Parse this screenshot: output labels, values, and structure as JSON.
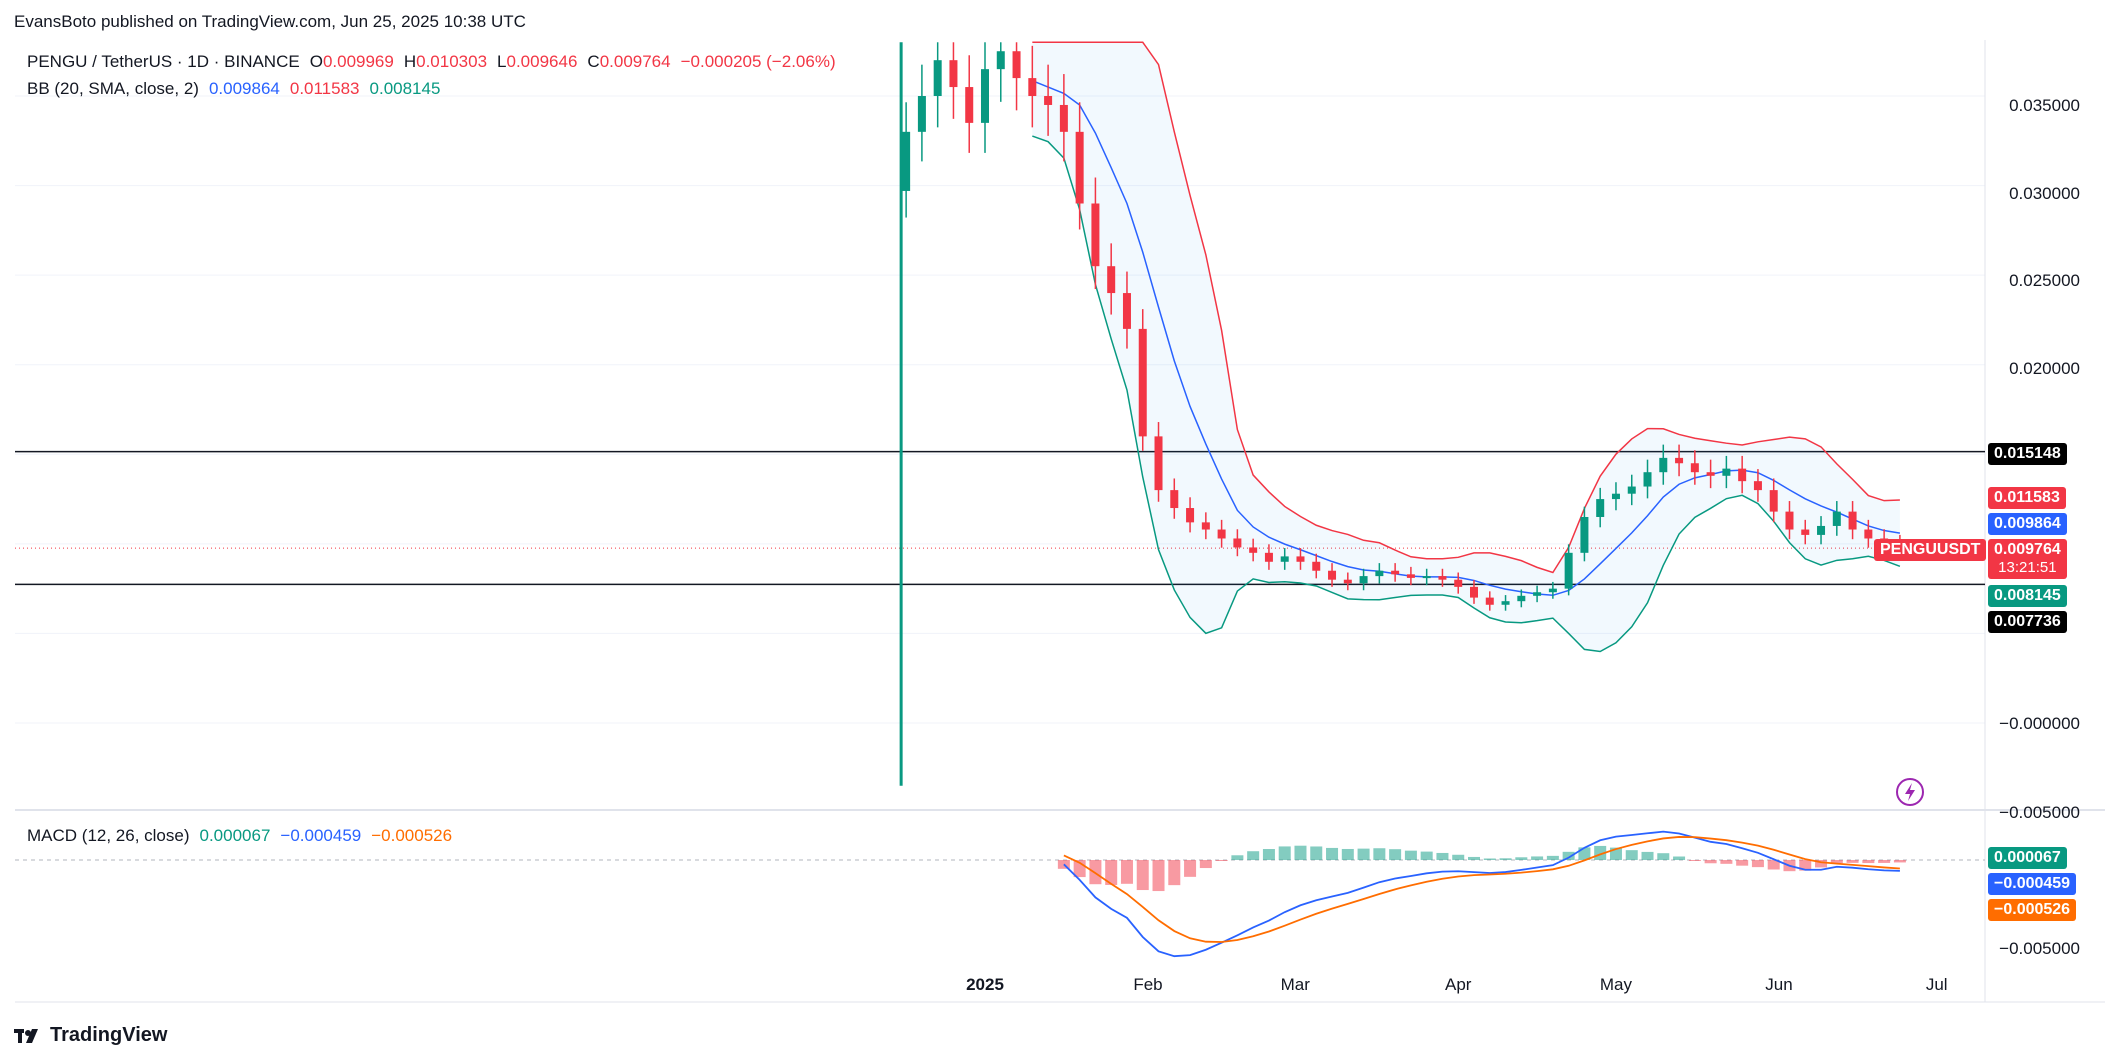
{
  "publisher": "EvansBoto published on TradingView.com, Jun 25, 2025 10:38 UTC",
  "brand": "TradingView",
  "legend": {
    "symbol": "PENGU / TetherUS · 1D · BINANCE",
    "ohlc": {
      "o_label": "O",
      "o": "0.009969",
      "h_label": "H",
      "h": "0.010303",
      "l_label": "L",
      "l": "0.009646",
      "c_label": "C",
      "c": "0.009764",
      "chg": "−0.000205 (−2.06%)"
    },
    "bb": {
      "name": "BB (20, SMA, close, 2)",
      "basis": "0.009864",
      "upper": "0.011583",
      "lower": "0.008145"
    },
    "macd": {
      "name": "MACD (12, 26, close)",
      "hist": "0.000067",
      "macd": "−0.000459",
      "signal": "−0.000526"
    }
  },
  "price_labels": {
    "level_high": "0.015148",
    "upper": "0.011583",
    "basis": "0.009864",
    "symbol_tag": "PENGUUSDT",
    "last": "0.009764",
    "countdown": "13:21:51",
    "lower": "0.008145",
    "level_low": "0.007736",
    "macd_hist": "0.000067",
    "macd_line": "−0.000459",
    "macd_signal": "−0.000526"
  },
  "colors": {
    "up": "#089981",
    "down": "#f23645",
    "basis": "#2962ff",
    "upper": "#f23645",
    "lower": "#089981",
    "signal": "#ff6d00",
    "band_fill": "#2196f3"
  },
  "chart_data": [
    {
      "type": "candlestick",
      "title": "PENGU / TetherUS · 1D · BINANCE",
      "y_axis_ticks": [
        "0.035000",
        "0.030000",
        "0.025000",
        "0.020000",
        "−0.000000",
        "−0.005000"
      ],
      "x_axis_ticks": [
        "2025",
        "Feb",
        "Mar",
        "Apr",
        "May",
        "Jun",
        "Jul"
      ],
      "horizontal_levels": [
        0.015148,
        0.007736
      ],
      "close_series": {
        "dates": [
          "2024-12-17",
          "2024-12-20",
          "2024-12-23",
          "2024-12-26",
          "2024-12-29",
          "2025-01-01",
          "2025-01-04",
          "2025-01-07",
          "2025-01-10",
          "2025-01-13",
          "2025-01-16",
          "2025-01-19",
          "2025-01-22",
          "2025-01-25",
          "2025-01-28",
          "2025-01-31",
          "2025-02-03",
          "2025-02-06",
          "2025-02-09",
          "2025-02-12",
          "2025-02-15",
          "2025-02-18",
          "2025-02-21",
          "2025-02-24",
          "2025-02-27",
          "2025-03-02",
          "2025-03-05",
          "2025-03-08",
          "2025-03-11",
          "2025-03-14",
          "2025-03-17",
          "2025-03-20",
          "2025-03-23",
          "2025-03-26",
          "2025-03-29",
          "2025-04-01",
          "2025-04-04",
          "2025-04-07",
          "2025-04-10",
          "2025-04-13",
          "2025-04-16",
          "2025-04-19",
          "2025-04-22",
          "2025-04-25",
          "2025-04-28",
          "2025-05-01",
          "2025-05-04",
          "2025-05-07",
          "2025-05-10",
          "2025-05-13",
          "2025-05-16",
          "2025-05-19",
          "2025-05-22",
          "2025-05-25",
          "2025-05-28",
          "2025-05-31",
          "2025-06-03",
          "2025-06-06",
          "2025-06-09",
          "2025-06-12",
          "2025-06-15",
          "2025-06-18",
          "2025-06-21",
          "2025-06-24"
        ],
        "close": [
          0.033,
          0.035,
          0.037,
          0.0355,
          0.0335,
          0.0365,
          0.0375,
          0.036,
          0.035,
          0.0345,
          0.033,
          0.029,
          0.0255,
          0.024,
          0.022,
          0.016,
          0.013,
          0.012,
          0.0112,
          0.0108,
          0.0103,
          0.0098,
          0.0095,
          0.009,
          0.0093,
          0.009,
          0.0085,
          0.008,
          0.0078,
          0.0082,
          0.0085,
          0.0083,
          0.0081,
          0.0082,
          0.008,
          0.0076,
          0.007,
          0.0066,
          0.0068,
          0.0071,
          0.0073,
          0.0075,
          0.0095,
          0.0115,
          0.0125,
          0.0128,
          0.0132,
          0.014,
          0.0148,
          0.0145,
          0.014,
          0.0138,
          0.0142,
          0.0135,
          0.013,
          0.0118,
          0.0108,
          0.0105,
          0.011,
          0.0118,
          0.0108,
          0.0103,
          0.01,
          0.0098
        ]
      },
      "bollinger": {
        "upper_last": 0.011583,
        "basis_last": 0.009864,
        "lower_last": 0.008145
      }
    },
    {
      "type": "line",
      "title": "MACD (12, 26, close)",
      "y_axis_ticks": [
        "−0.005000"
      ],
      "series": [
        {
          "name": "MACD",
          "last": -0.000459
        },
        {
          "name": "Signal",
          "last": -0.000526
        },
        {
          "name": "Histogram",
          "last": 6.7e-05
        }
      ]
    }
  ]
}
